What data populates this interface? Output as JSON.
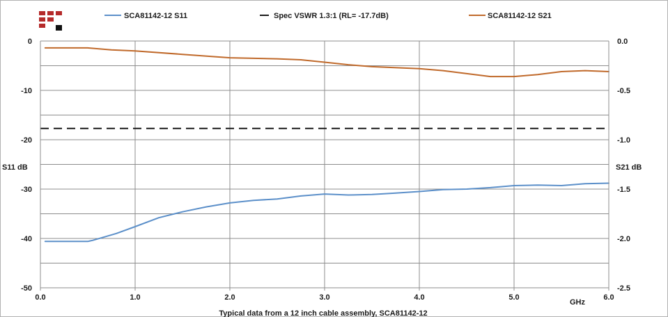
{
  "colors": {
    "s11": "#5b8fc9",
    "spec": "#1a1a1a",
    "s21": "#c0692a",
    "logo_red": "#b52a2a",
    "logo_black": "#111111",
    "grid": "#8c8c8c",
    "frame": "#b0b0b0"
  },
  "chart_data": {
    "type": "line",
    "caption": "Typical data from a  12 inch cable assembly, SCA81142-12",
    "xlabel": "GHz",
    "ylabel_left": "S11 dB",
    "ylabel_right": "S21 dB",
    "xlim": [
      0.0,
      6.0
    ],
    "ylim_left": [
      -50,
      0
    ],
    "ylim_right": [
      -2.5,
      0.0
    ],
    "x_ticks": [
      "0.0",
      "1.0",
      "2.0",
      "3.0",
      "4.0",
      "5.0",
      "6.0"
    ],
    "y_left_ticks": [
      "0",
      "-10",
      "-20",
      "-30",
      "-40",
      "-50"
    ],
    "y_right_ticks": [
      "0.0",
      "-0.5",
      "-1.0",
      "-1.5",
      "-2.0",
      "-2.5"
    ],
    "grid": true,
    "legend_position": "top",
    "series": [
      {
        "name": "SCA81142-12 S11",
        "axis": "left",
        "color_key": "s11",
        "dash": false,
        "x": [
          0.05,
          0.3,
          0.5,
          0.55,
          0.8,
          1.0,
          1.25,
          1.5,
          1.75,
          2.0,
          2.25,
          2.5,
          2.75,
          3.0,
          3.25,
          3.5,
          3.75,
          4.0,
          4.25,
          4.5,
          4.75,
          5.0,
          5.25,
          5.5,
          5.75,
          6.0
        ],
        "y": [
          -40.6,
          -40.6,
          -40.6,
          -40.4,
          -39.0,
          -37.6,
          -35.8,
          -34.6,
          -33.6,
          -32.8,
          -32.3,
          -32.0,
          -31.4,
          -31.0,
          -31.2,
          -31.1,
          -30.8,
          -30.5,
          -30.1,
          -30.0,
          -29.7,
          -29.3,
          -29.2,
          -29.3,
          -28.9,
          -28.8
        ]
      },
      {
        "name": "Spec VSWR 1.3:1 (RL= -17.7dB)",
        "axis": "left",
        "color_key": "spec",
        "dash": true,
        "x": [
          0.0,
          6.0
        ],
        "y": [
          -17.7,
          -17.7
        ]
      },
      {
        "name": "SCA81142-12 S21",
        "axis": "right",
        "color_key": "s21",
        "dash": false,
        "x": [
          0.05,
          0.5,
          0.75,
          1.0,
          1.5,
          2.0,
          2.5,
          2.75,
          3.0,
          3.25,
          3.5,
          4.0,
          4.25,
          4.5,
          4.75,
          5.0,
          5.25,
          5.5,
          5.75,
          6.0
        ],
        "y": [
          -0.07,
          -0.07,
          -0.09,
          -0.1,
          -0.135,
          -0.17,
          -0.18,
          -0.19,
          -0.215,
          -0.24,
          -0.26,
          -0.28,
          -0.3,
          -0.33,
          -0.36,
          -0.36,
          -0.34,
          -0.31,
          -0.3,
          -0.31
        ]
      }
    ]
  }
}
